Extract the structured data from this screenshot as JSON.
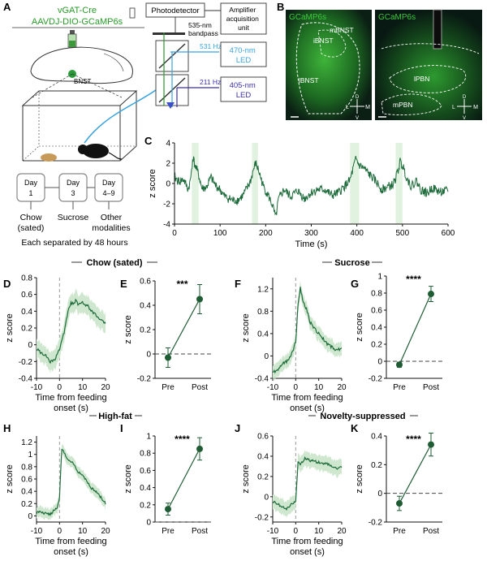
{
  "panel_labels": [
    "A",
    "B",
    "C",
    "D",
    "E",
    "F",
    "G",
    "H",
    "I",
    "J",
    "K"
  ],
  "schematic": {
    "mouse_line": "vGAT-Cre",
    "virus": "AAVDJ-DIO-GCaMP6s",
    "bnst_label": "BNST",
    "photodetector": "Photodetector",
    "amplifier": "Amplifier acquisition unit",
    "amplifier_lines": [
      "Amplifier",
      "acquisition",
      "unit"
    ],
    "bandpass_lines": [
      "535-nm",
      "bandpass"
    ],
    "led1_hz": "531 Hz",
    "led1_lines": [
      "470-nm",
      "LED"
    ],
    "led2_hz": "211 Hz",
    "led2_lines": [
      "405-nm",
      "LED"
    ],
    "days": [
      {
        "l1": "Day",
        "l2": "1",
        "food": "Chow",
        "food2": "(sated)"
      },
      {
        "l1": "Day",
        "l2": "3",
        "food": "Sucrose",
        "food2": ""
      },
      {
        "l1": "Day",
        "l2": "4–9",
        "food": "Other",
        "food2": "modalities"
      }
    ],
    "separation": "Each separated by 48 hours"
  },
  "histology": [
    {
      "label": "GCaMP6s",
      "regions": [
        "mBNST",
        "iBNST",
        "lBNST"
      ],
      "compass": {
        "d": "D",
        "v": "V",
        "l": "L",
        "m": "M"
      }
    },
    {
      "label": "GCaMP6s",
      "regions": [
        "lPBN",
        "mPBN"
      ],
      "compass": {
        "d": "D",
        "v": "V",
        "l": "L",
        "m": "M"
      }
    }
  ],
  "section_titles": {
    "chow": "Chow (sated)",
    "sucrose": "Sucrose",
    "highfat": "High-fat",
    "novelty": "Novelty-suppressed"
  },
  "axis_text": {
    "zscore": "z score",
    "time_s": "Time (s)",
    "onset_lines": [
      "Time from feeding",
      "onset (s)"
    ]
  },
  "significance": {
    "E": "***",
    "G": "****",
    "I": "****",
    "K": "****"
  },
  "chart_data": [
    {
      "id": "C",
      "type": "line",
      "xlabel": "Time (s)",
      "ylabel": "z score",
      "xlim": [
        0,
        600
      ],
      "ylim": [
        -4,
        4
      ],
      "xticks": [
        0,
        100,
        200,
        300,
        400,
        500,
        600
      ],
      "yticks": [
        -4,
        -2,
        0,
        2,
        4
      ],
      "feeding_bouts": [
        [
          38,
          53
        ],
        [
          170,
          183
        ],
        [
          385,
          405
        ],
        [
          485,
          500
        ]
      ],
      "anchors": [
        [
          0,
          0.6
        ],
        [
          10,
          0.2
        ],
        [
          20,
          0.4
        ],
        [
          30,
          -0.6
        ],
        [
          35,
          0.3
        ],
        [
          40,
          2.6
        ],
        [
          45,
          1.8
        ],
        [
          50,
          1.2
        ],
        [
          55,
          0.5
        ],
        [
          60,
          -0.5
        ],
        [
          70,
          -0.4
        ],
        [
          80,
          0.6
        ],
        [
          90,
          -0.2
        ],
        [
          100,
          -0.6
        ],
        [
          110,
          -1.3
        ],
        [
          120,
          -1.5
        ],
        [
          130,
          -1.7
        ],
        [
          140,
          -1.6
        ],
        [
          150,
          -1.2
        ],
        [
          160,
          -0.4
        ],
        [
          168,
          0.4
        ],
        [
          172,
          1.2
        ],
        [
          178,
          2.0
        ],
        [
          185,
          1.2
        ],
        [
          195,
          -0.3
        ],
        [
          205,
          -1.1
        ],
        [
          215,
          -2.2
        ],
        [
          222,
          -3.4
        ],
        [
          228,
          -1.6
        ],
        [
          240,
          -0.6
        ],
        [
          255,
          -1.3
        ],
        [
          270,
          -0.7
        ],
        [
          285,
          -1.5
        ],
        [
          300,
          -0.9
        ],
        [
          315,
          -0.6
        ],
        [
          330,
          -0.6
        ],
        [
          345,
          -1.2
        ],
        [
          360,
          -0.9
        ],
        [
          375,
          -0.2
        ],
        [
          385,
          0.3
        ],
        [
          392,
          1.5
        ],
        [
          398,
          2.4
        ],
        [
          405,
          1.8
        ],
        [
          415,
          1.5
        ],
        [
          425,
          1.0
        ],
        [
          440,
          0.3
        ],
        [
          455,
          -0.6
        ],
        [
          470,
          -0.3
        ],
        [
          480,
          -0.1
        ],
        [
          488,
          0.9
        ],
        [
          495,
          2.1
        ],
        [
          502,
          1.6
        ],
        [
          510,
          0.5
        ],
        [
          520,
          -0.3
        ],
        [
          530,
          0.3
        ],
        [
          540,
          -0.6
        ],
        [
          555,
          -1.0
        ],
        [
          565,
          -0.4
        ],
        [
          580,
          -0.8
        ],
        [
          592,
          -0.8
        ],
        [
          600,
          -0.7
        ]
      ]
    },
    {
      "id": "D",
      "type": "line",
      "xlabel": "Time from feeding onset (s)",
      "ylabel": "z score",
      "xlim": [
        -10,
        20
      ],
      "ylim": [
        -0.4,
        0.8
      ],
      "xticks": [
        -10,
        0,
        10,
        20
      ],
      "yticks": [
        -0.4,
        -0.2,
        0,
        0.2,
        0.4,
        0.6,
        0.8
      ],
      "anchors": [
        [
          -10,
          -0.05
        ],
        [
          -8,
          -0.1
        ],
        [
          -6,
          -0.13
        ],
        [
          -4,
          -0.2
        ],
        [
          -2,
          -0.17
        ],
        [
          0,
          -0.05
        ],
        [
          1,
          0.05
        ],
        [
          2,
          0.15
        ],
        [
          3,
          0.3
        ],
        [
          4,
          0.42
        ],
        [
          5,
          0.5
        ],
        [
          6,
          0.48
        ],
        [
          7,
          0.53
        ],
        [
          8,
          0.48
        ],
        [
          10,
          0.5
        ],
        [
          12,
          0.47
        ],
        [
          14,
          0.4
        ],
        [
          16,
          0.35
        ],
        [
          18,
          0.3
        ],
        [
          20,
          0.25
        ]
      ],
      "sem": 0.09
    },
    {
      "id": "E",
      "type": "scatter",
      "categories": [
        "Pre",
        "Post"
      ],
      "values": [
        -0.03,
        0.45
      ],
      "errors": [
        0.08,
        0.12
      ],
      "ylabel": "z score",
      "ylim": [
        -0.2,
        0.6
      ],
      "yticks": [
        -0.2,
        0,
        0.2,
        0.4,
        0.6
      ]
    },
    {
      "id": "F",
      "type": "line",
      "xlabel": "Time from feeding onset (s)",
      "ylabel": "z score",
      "xlim": [
        -10,
        20
      ],
      "ylim": [
        -0.4,
        1.4
      ],
      "xticks": [
        -10,
        0,
        10,
        20
      ],
      "yticks": [
        -0.4,
        0,
        0.4,
        0.8,
        1.2
      ],
      "anchors": [
        [
          -10,
          -0.3
        ],
        [
          -8,
          -0.25
        ],
        [
          -6,
          -0.15
        ],
        [
          -4,
          -0.1
        ],
        [
          -2,
          0.0
        ],
        [
          0,
          0.25
        ],
        [
          1,
          0.9
        ],
        [
          2,
          1.22
        ],
        [
          3,
          1.0
        ],
        [
          4,
          0.9
        ],
        [
          5,
          0.8
        ],
        [
          6,
          0.62
        ],
        [
          8,
          0.5
        ],
        [
          10,
          0.4
        ],
        [
          12,
          0.3
        ],
        [
          14,
          0.2
        ],
        [
          16,
          0.15
        ],
        [
          18,
          0.1
        ],
        [
          20,
          0.15
        ]
      ],
      "sem": 0.1
    },
    {
      "id": "G",
      "type": "scatter",
      "categories": [
        "Pre",
        "Post"
      ],
      "values": [
        -0.04,
        0.79
      ],
      "errors": [
        0.03,
        0.09
      ],
      "ylabel": "z score",
      "ylim": [
        -0.2,
        1.0
      ],
      "yticks": [
        -0.2,
        0,
        0.2,
        0.4,
        0.6,
        0.8,
        1.0
      ]
    },
    {
      "id": "H",
      "type": "line",
      "xlabel": "Time from feeding onset (s)",
      "ylabel": "z score",
      "xlim": [
        -10,
        20
      ],
      "ylim": [
        -0.1,
        1.3
      ],
      "xticks": [
        -10,
        0,
        10,
        20
      ],
      "yticks": [
        0,
        0.2,
        0.4,
        0.6,
        0.8,
        1.0,
        1.2
      ],
      "anchors": [
        [
          -10,
          0.05
        ],
        [
          -8,
          0.06
        ],
        [
          -6,
          0.04
        ],
        [
          -4,
          0.03
        ],
        [
          -2,
          0.1
        ],
        [
          -1,
          0.12
        ],
        [
          0,
          0.3
        ],
        [
          1,
          1.1
        ],
        [
          2,
          1.02
        ],
        [
          4,
          0.9
        ],
        [
          6,
          0.85
        ],
        [
          8,
          0.72
        ],
        [
          10,
          0.65
        ],
        [
          12,
          0.55
        ],
        [
          14,
          0.45
        ],
        [
          16,
          0.4
        ],
        [
          18,
          0.3
        ],
        [
          20,
          0.2
        ]
      ],
      "sem": 0.07
    },
    {
      "id": "I",
      "type": "scatter",
      "categories": [
        "Pre",
        "Post"
      ],
      "values": [
        0.15,
        0.85
      ],
      "errors": [
        0.07,
        0.13
      ],
      "ylabel": "z score",
      "ylim": [
        0,
        1.0
      ],
      "yticks": [
        0,
        0.2,
        0.4,
        0.6,
        0.8,
        1.0
      ]
    },
    {
      "id": "J",
      "type": "line",
      "xlabel": "Time from feeding onset (s)",
      "ylabel": "z score",
      "xlim": [
        -10,
        20
      ],
      "ylim": [
        -0.25,
        0.6
      ],
      "xticks": [
        -10,
        0,
        10,
        20
      ],
      "yticks": [
        -0.2,
        0,
        0.2,
        0.4,
        0.6
      ],
      "anchors": [
        [
          -10,
          -0.05
        ],
        [
          -8,
          -0.07
        ],
        [
          -6,
          -0.1
        ],
        [
          -4,
          -0.12
        ],
        [
          -2,
          -0.08
        ],
        [
          0,
          -0.05
        ],
        [
          1,
          0.35
        ],
        [
          2,
          0.32
        ],
        [
          4,
          0.38
        ],
        [
          6,
          0.36
        ],
        [
          8,
          0.35
        ],
        [
          10,
          0.34
        ],
        [
          12,
          0.33
        ],
        [
          14,
          0.32
        ],
        [
          16,
          0.3
        ],
        [
          18,
          0.28
        ],
        [
          20,
          0.3
        ]
      ],
      "sem": 0.06
    },
    {
      "id": "K",
      "type": "scatter",
      "categories": [
        "Pre",
        "Post"
      ],
      "values": [
        -0.07,
        0.34
      ],
      "errors": [
        0.05,
        0.08
      ],
      "ylabel": "z score",
      "ylim": [
        -0.2,
        0.4
      ],
      "yticks": [
        -0.2,
        0,
        0.2,
        0.4
      ]
    }
  ],
  "colors": {
    "trace": "#1d6b3a",
    "band": "#cfe7cf",
    "bout": "#e2f2e0",
    "dark": "#1f5c34",
    "tissue": "#1f7a2e",
    "blue470": "#3aa3dc",
    "blue405": "#3b2fa6"
  }
}
